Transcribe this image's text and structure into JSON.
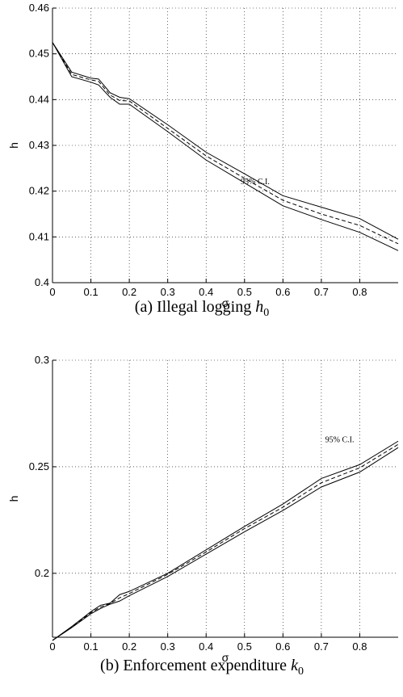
{
  "chart_data": [
    {
      "type": "line",
      "caption_text": "(a) Illegal logging ",
      "caption_var": "h",
      "caption_sub": "0",
      "xlabel": "σ",
      "ylabel": "h",
      "xlim": [
        0,
        0.9
      ],
      "ylim": [
        0.4,
        0.46
      ],
      "xticks": [
        0,
        0.1,
        0.2,
        0.3,
        0.4,
        0.5,
        0.6,
        0.7,
        0.8
      ],
      "xtick_labels": [
        "0",
        "0.1",
        "0.2",
        "0.3",
        "0.4",
        "0.5",
        "0.6",
        "0.7",
        "0.8"
      ],
      "yticks": [
        0.4,
        0.41,
        0.42,
        0.43,
        0.44,
        0.45,
        0.46
      ],
      "ytick_labels": [
        "0.4",
        "0.41",
        "0.42",
        "0.43",
        "0.44",
        "0.45",
        "0.46"
      ],
      "grid": true,
      "annotation": {
        "text": "95% C.I.",
        "x": 0.49,
        "y": 0.4215
      },
      "series": [
        {
          "style": "solid",
          "x": [
            0,
            0.05,
            0.1,
            0.12,
            0.15,
            0.175,
            0.2,
            0.3,
            0.4,
            0.5,
            0.6,
            0.7,
            0.8,
            0.9
          ],
          "y": [
            0.4525,
            0.446,
            0.4447,
            0.4445,
            0.4415,
            0.4405,
            0.4402,
            0.4345,
            0.4285,
            0.4238,
            0.419,
            0.4165,
            0.414,
            0.4095
          ]
        },
        {
          "style": "dashed",
          "x": [
            0,
            0.05,
            0.1,
            0.12,
            0.15,
            0.175,
            0.2,
            0.3,
            0.4,
            0.5,
            0.6,
            0.7,
            0.8,
            0.9
          ],
          "y": [
            0.4525,
            0.4455,
            0.4443,
            0.444,
            0.441,
            0.4398,
            0.4397,
            0.4337,
            0.4277,
            0.4228,
            0.418,
            0.415,
            0.4125,
            0.4085
          ]
        },
        {
          "style": "solid",
          "x": [
            0,
            0.05,
            0.1,
            0.12,
            0.15,
            0.175,
            0.2,
            0.3,
            0.4,
            0.5,
            0.6,
            0.7,
            0.8,
            0.9
          ],
          "y": [
            0.4525,
            0.445,
            0.4438,
            0.4432,
            0.4405,
            0.439,
            0.439,
            0.433,
            0.4268,
            0.4218,
            0.4168,
            0.4138,
            0.411,
            0.407
          ]
        }
      ]
    },
    {
      "type": "line",
      "caption_text": "(b) Enforcement expenditure ",
      "caption_var": "k",
      "caption_sub": "0",
      "xlabel": "σ",
      "ylabel": "h",
      "xlim": [
        0,
        0.9
      ],
      "ylim": [
        0.17,
        0.3
      ],
      "xticks": [
        0,
        0.1,
        0.2,
        0.3,
        0.4,
        0.5,
        0.6,
        0.7,
        0.8
      ],
      "xtick_labels": [
        "0",
        "0.1",
        "0.2",
        "0.3",
        "0.4",
        "0.5",
        "0.6",
        "0.7",
        "0.8"
      ],
      "yticks": [
        0.2,
        0.25,
        0.3
      ],
      "ytick_labels": [
        "0.2",
        "0.25",
        "0.3"
      ],
      "grid": true,
      "annotation": {
        "text": "95% C.I.",
        "x": 0.71,
        "y": 0.2615
      },
      "series": [
        {
          "style": "solid",
          "x": [
            0,
            0.05,
            0.1,
            0.125,
            0.15,
            0.175,
            0.2,
            0.3,
            0.4,
            0.5,
            0.6,
            0.7,
            0.8,
            0.9
          ],
          "y": [
            0.1685,
            0.175,
            0.182,
            0.185,
            0.186,
            0.19,
            0.1915,
            0.2,
            0.211,
            0.222,
            0.2325,
            0.2445,
            0.251,
            0.262
          ]
        },
        {
          "style": "dashed",
          "x": [
            0,
            0.05,
            0.1,
            0.125,
            0.15,
            0.175,
            0.2,
            0.3,
            0.4,
            0.5,
            0.6,
            0.7,
            0.8,
            0.9
          ],
          "y": [
            0.1685,
            0.1748,
            0.1815,
            0.1842,
            0.1858,
            0.1885,
            0.1905,
            0.1995,
            0.21,
            0.221,
            0.231,
            0.2425,
            0.2495,
            0.2605
          ]
        },
        {
          "style": "solid",
          "x": [
            0,
            0.05,
            0.1,
            0.125,
            0.15,
            0.175,
            0.2,
            0.3,
            0.4,
            0.5,
            0.6,
            0.7,
            0.8,
            0.9
          ],
          "y": [
            0.1685,
            0.1745,
            0.181,
            0.1835,
            0.1855,
            0.187,
            0.1895,
            0.1985,
            0.209,
            0.2195,
            0.2295,
            0.2405,
            0.2475,
            0.259
          ]
        }
      ]
    }
  ]
}
